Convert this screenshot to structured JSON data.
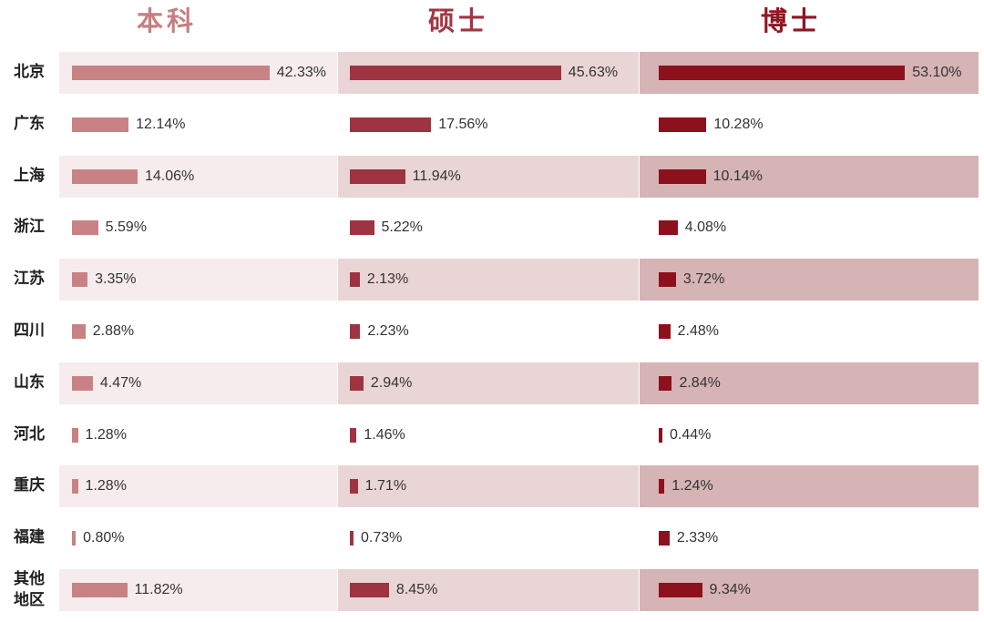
{
  "chart_data": {
    "type": "bar",
    "orientation": "horizontal",
    "categories": [
      "北京",
      "广东",
      "上海",
      "浙江",
      "江苏",
      "四川",
      "山东",
      "河北",
      "重庆",
      "福建",
      "其他\n地区"
    ],
    "series": [
      {
        "name": "本科",
        "color": "#c98283",
        "values": [
          42.33,
          12.14,
          14.06,
          5.59,
          3.35,
          2.88,
          4.47,
          1.28,
          1.28,
          0.8,
          11.82
        ],
        "labels": [
          "42.33%",
          "12.14%",
          "14.06%",
          "5.59%",
          "3.35%",
          "2.88%",
          "4.47%",
          "1.28%",
          "1.28%",
          "0.80%",
          "11.82%"
        ]
      },
      {
        "name": "硕士",
        "color": "#9e3442",
        "values": [
          45.63,
          17.56,
          11.94,
          5.22,
          2.13,
          2.23,
          2.94,
          1.46,
          1.71,
          0.73,
          8.45
        ],
        "labels": [
          "45.63%",
          "17.56%",
          "11.94%",
          "5.22%",
          "2.13%",
          "2.23%",
          "2.94%",
          "1.46%",
          "1.71%",
          "0.73%",
          "8.45%"
        ]
      },
      {
        "name": "博士",
        "color": "#8c111d",
        "values": [
          53.1,
          10.28,
          10.14,
          4.08,
          3.72,
          2.48,
          2.84,
          0.44,
          1.24,
          2.33,
          9.34
        ],
        "labels": [
          "53.10%",
          "10.28%",
          "10.14%",
          "4.08%",
          "3.72%",
          "2.48%",
          "2.84%",
          "0.44%",
          "1.24%",
          "2.33%",
          "9.34%"
        ]
      }
    ],
    "header_colors": [
      "#c57f82",
      "#a43543",
      "#8f1622"
    ],
    "band_colors": [
      "#f6eced",
      "#ead5d6",
      "#d6b3b4"
    ],
    "grid": false,
    "legend": "none"
  }
}
